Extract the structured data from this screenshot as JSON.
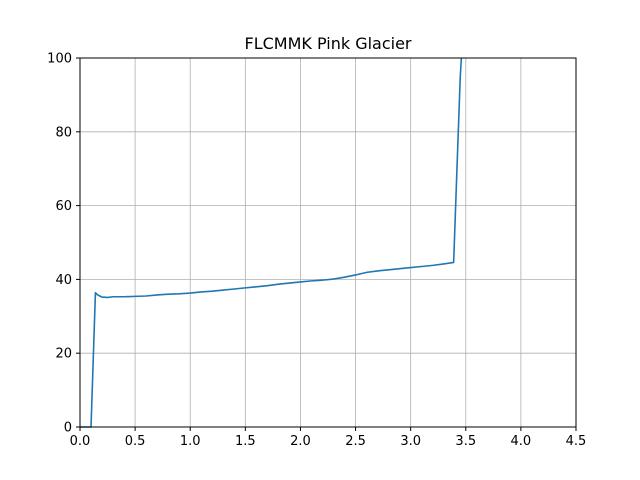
{
  "chart_data": {
    "type": "line",
    "title": "FLCMMK Pink Glacier",
    "xlabel": "",
    "ylabel": "",
    "xlim": [
      0,
      4.5
    ],
    "ylim": [
      0,
      100
    ],
    "x_ticks": [
      0,
      0.5,
      1,
      1.5,
      2,
      2.5,
      3,
      3.5,
      4,
      4.5
    ],
    "x_tick_labels": [
      "0.0",
      "0.5",
      "1.0",
      "1.5",
      "2.0",
      "2.5",
      "3.0",
      "3.5",
      "4.0",
      "4.5"
    ],
    "y_ticks": [
      0,
      20,
      40,
      60,
      80,
      100
    ],
    "y_tick_labels": [
      "0",
      "20",
      "40",
      "60",
      "80",
      "100"
    ],
    "grid": true,
    "series_color": "#1f77b4",
    "series": [
      {
        "x": [
          0.0,
          0.1,
          0.14,
          0.16,
          0.2,
          0.25,
          0.3,
          0.4,
          0.5,
          0.6,
          0.7,
          0.8,
          0.9,
          1.0,
          1.1,
          1.2,
          1.3,
          1.4,
          1.5,
          1.6,
          1.7,
          1.8,
          1.9,
          2.0,
          2.1,
          2.2,
          2.3,
          2.4,
          2.5,
          2.6,
          2.7,
          2.8,
          2.9,
          3.0,
          3.1,
          3.2,
          3.3,
          3.39,
          3.42,
          3.45,
          3.46
        ],
        "y": [
          0,
          0,
          36.4,
          35.8,
          35.2,
          35.1,
          35.3,
          35.3,
          35.4,
          35.5,
          35.8,
          36.0,
          36.1,
          36.3,
          36.6,
          36.8,
          37.1,
          37.4,
          37.7,
          38.0,
          38.3,
          38.7,
          39.0,
          39.3,
          39.6,
          39.8,
          40.1,
          40.6,
          41.2,
          41.9,
          42.3,
          42.6,
          42.9,
          43.2,
          43.5,
          43.8,
          44.2,
          44.6,
          70,
          95,
          100
        ]
      }
    ]
  }
}
